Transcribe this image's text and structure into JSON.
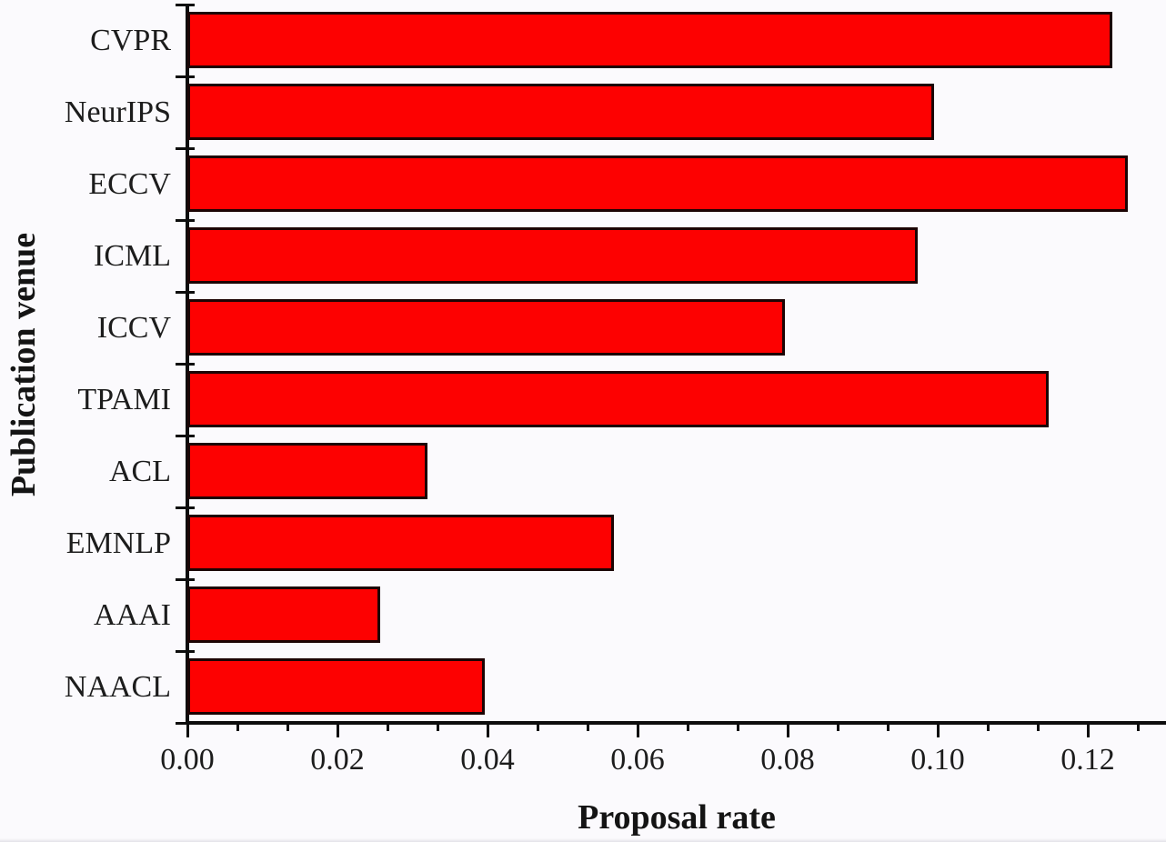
{
  "chart_data": {
    "type": "bar",
    "orientation": "horizontal",
    "title": "",
    "xlabel": "Proposal rate",
    "ylabel": "Publication venue",
    "categories": [
      "CVPR",
      "NeurIPS",
      "ECCV",
      "ICML",
      "ICCV",
      "TPAMI",
      "ACL",
      "EMNLP",
      "AAAI",
      "NAACL"
    ],
    "values": [
      0.1233,
      0.0995,
      0.1253,
      0.0973,
      0.0796,
      0.1148,
      0.032,
      0.0569,
      0.0257,
      0.0396
    ],
    "xlim": [
      0,
      0.1304
    ],
    "xticks": [
      0.0,
      0.02,
      0.04,
      0.06,
      0.08,
      0.1,
      0.12
    ],
    "xtick_labels": [
      "0.00",
      "0.02",
      "0.04",
      "0.06",
      "0.08",
      "0.10",
      "0.12"
    ],
    "minor_xtick_step": 0.0066667,
    "grid": false,
    "legend": null,
    "colors": {
      "bar_fill": "#fd0101",
      "bar_border": "#1c0404",
      "axis": "#0d0d0d",
      "text": "#1c1c1c",
      "background": "#fbfafd"
    }
  }
}
